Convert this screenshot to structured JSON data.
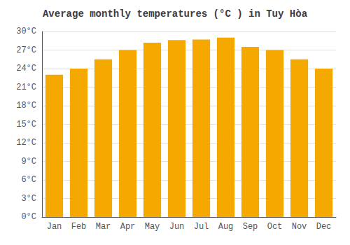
{
  "chart_data": {
    "type": "bar",
    "title": "Average monthly temperatures (°C ) in Tuy Hòa",
    "categories": [
      "Jan",
      "Feb",
      "Mar",
      "Apr",
      "May",
      "Jun",
      "Jul",
      "Aug",
      "Sep",
      "Oct",
      "Nov",
      "Dec"
    ],
    "values": [
      23.0,
      24.0,
      25.5,
      27.0,
      28.2,
      28.6,
      28.7,
      29.0,
      27.5,
      27.0,
      25.5,
      24.0
    ],
    "color": "#F5A800",
    "ylim": [
      0,
      30
    ],
    "yticks": [
      {
        "value": 0,
        "label": "0°C"
      },
      {
        "value": 3,
        "label": "3°C"
      },
      {
        "value": 6,
        "label": "6°C"
      },
      {
        "value": 9,
        "label": "9°C"
      },
      {
        "value": 12,
        "label": "12°C"
      },
      {
        "value": 15,
        "label": "15°C"
      },
      {
        "value": 18,
        "label": "18°C"
      },
      {
        "value": 21,
        "label": "21°C"
      },
      {
        "value": 24,
        "label": "24°C"
      },
      {
        "value": 27,
        "label": "27°C"
      },
      {
        "value": 30,
        "label": "30°C"
      }
    ],
    "grid": true
  }
}
